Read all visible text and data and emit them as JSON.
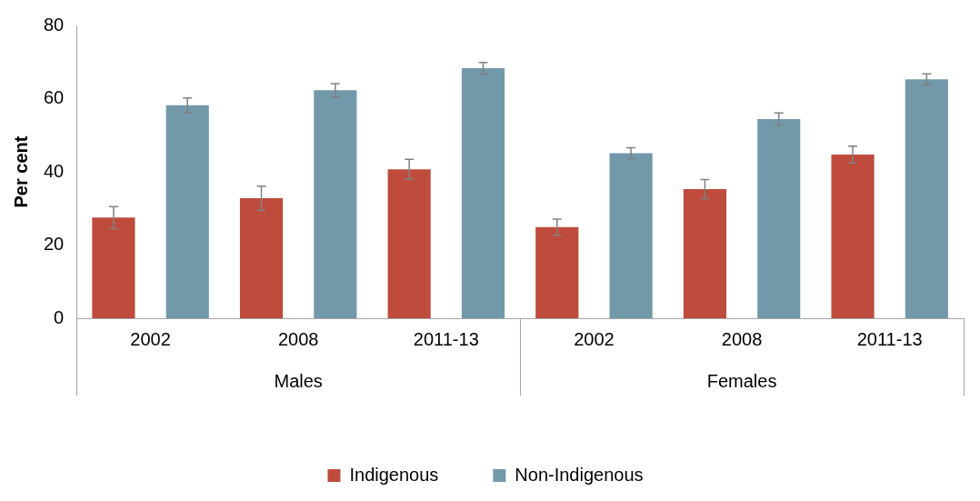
{
  "chart_data": {
    "type": "bar",
    "ylabel": "Per cent",
    "categories": [
      "2002",
      "2008",
      "2011-13",
      "2002",
      "2008",
      "2011-13"
    ],
    "annotations": [
      "Males",
      "Females"
    ],
    "series": [
      {
        "name": "Indigenous",
        "color": "#be4b3b",
        "values": [
          27.5,
          32.8,
          40.7,
          24.9,
          35.3,
          44.7
        ],
        "errors": [
          3,
          3.3,
          2.7,
          2.2,
          2.6,
          2.3
        ]
      },
      {
        "name": "Non-Indigenous",
        "color": "#7299a9",
        "values": [
          58.2,
          62.3,
          68.3,
          45.1,
          54.4,
          65.3
        ],
        "errors": [
          2,
          1.8,
          1.6,
          1.5,
          1.7,
          1.5
        ]
      }
    ],
    "ylim": [
      0,
      80
    ],
    "yticks": [
      0,
      20,
      40,
      60,
      80
    ],
    "grid": false,
    "legend": "bottom"
  }
}
